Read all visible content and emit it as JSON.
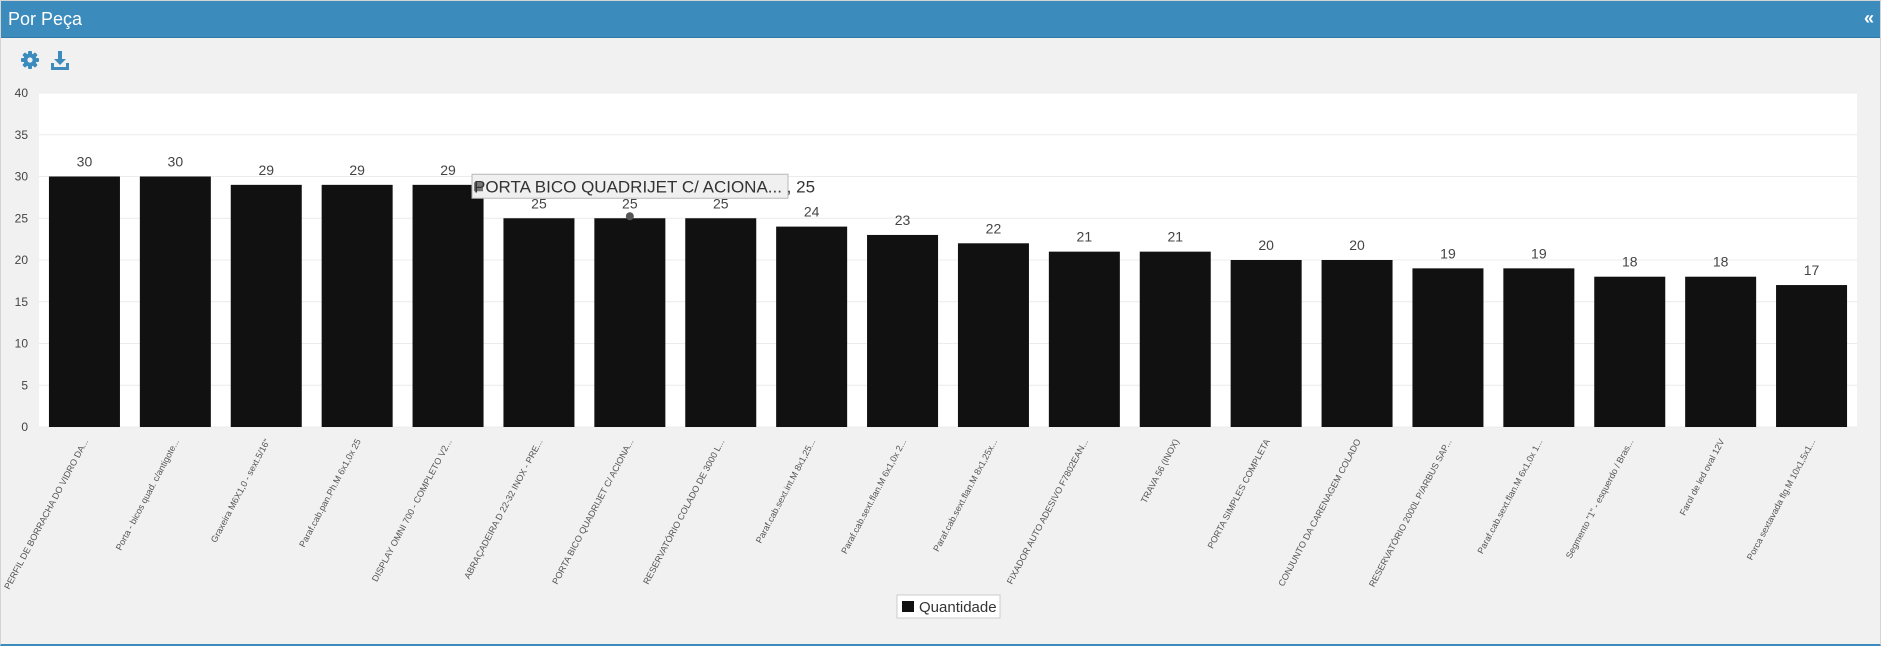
{
  "panel": {
    "title": "Por Peça",
    "collapse_label": "«"
  },
  "toolbar": {
    "settings_icon": "gear-icon",
    "download_icon": "download-icon",
    "accent_color": "#3b8bbd"
  },
  "chart_data": {
    "type": "bar",
    "categories": [
      "PERFIL DE BORRACHA DO VIDRO DA...",
      "Porta - bicos quad. c/antigote...",
      "Graxeira M6X1,0 - sext.5/16\"",
      "Paraf.cab.pan.Ph.M 6x1,0x 25",
      "DISPLAY OMNI 700 - COMPLETO V2...",
      "ABRAÇADEIRA D 22-32 INOX - PRE...",
      "PORTA BICO QUADRIJET C/ ACIONA...",
      "RESERVATÓRIO COLADO DE 3000 L...",
      "Paraf.cab.sext.int.M 8x1,25...",
      "Paraf.cab.sext.flan.M 6x1,0x 2...",
      "Paraf.cab.sext.flan.M 8x1,25x...",
      "FIXADOR AUTO ADESIVO F7802EAN...",
      "TRAVA 56 (INOX)",
      "PORTA SIMPLES COMPLETA",
      "CONJUNTO DA CARENAGEM COLADO",
      "RESERVATÓRIO 2000L P/ARBUS SAP...",
      "Paraf.cab.sext.flan.M 6x1,0x 1...",
      "Segmento \"1\" - esquerdo / Bras...",
      "Farol de led oval 12V",
      "Porca sextavada flg.M 10x1,5x1..."
    ],
    "series": [
      {
        "name": "Quantidade",
        "color": "#111111",
        "values": [
          30,
          30,
          29,
          29,
          29,
          25,
          25,
          25,
          24,
          23,
          22,
          21,
          21,
          20,
          20,
          19,
          19,
          18,
          18,
          17
        ]
      }
    ],
    "ylim": [
      0,
      40
    ],
    "yticks": [
      0,
      5,
      10,
      15,
      20,
      25,
      30,
      35,
      40
    ],
    "grid": true,
    "legend_placement": "bottom-center",
    "tooltip": {
      "category_index": 6,
      "text": "PORTA BICO QUADRIJET C/ ACIONA... , 25"
    }
  }
}
